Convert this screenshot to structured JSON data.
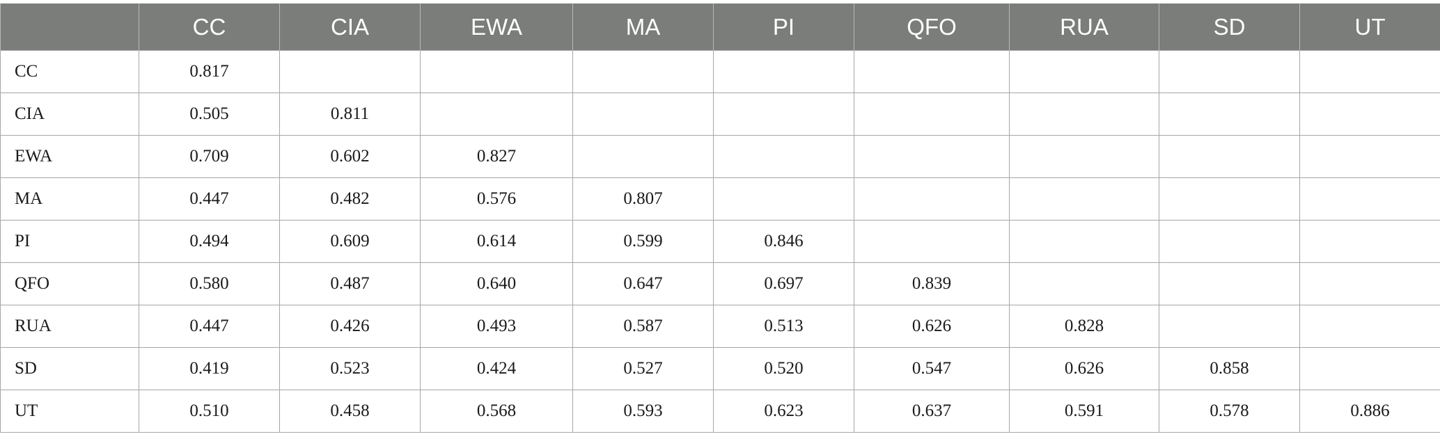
{
  "table": {
    "corner": "",
    "columns": [
      "CC",
      "CIA",
      "EWA",
      "MA",
      "PI",
      "QFO",
      "RUA",
      "SD",
      "UT"
    ],
    "rows": [
      {
        "label": "CC",
        "values": [
          "0.817",
          "",
          "",
          "",
          "",
          "",
          "",
          "",
          ""
        ]
      },
      {
        "label": "CIA",
        "values": [
          "0.505",
          "0.811",
          "",
          "",
          "",
          "",
          "",
          "",
          ""
        ]
      },
      {
        "label": "EWA",
        "values": [
          "0.709",
          "0.602",
          "0.827",
          "",
          "",
          "",
          "",
          "",
          ""
        ]
      },
      {
        "label": "MA",
        "values": [
          "0.447",
          "0.482",
          "0.576",
          "0.807",
          "",
          "",
          "",
          "",
          ""
        ]
      },
      {
        "label": "PI",
        "values": [
          "0.494",
          "0.609",
          "0.614",
          "0.599",
          "0.846",
          "",
          "",
          "",
          ""
        ]
      },
      {
        "label": "QFO",
        "values": [
          "0.580",
          "0.487",
          "0.640",
          "0.647",
          "0.697",
          "0.839",
          "",
          "",
          ""
        ]
      },
      {
        "label": "RUA",
        "values": [
          "0.447",
          "0.426",
          "0.493",
          "0.587",
          "0.513",
          "0.626",
          "0.828",
          "",
          ""
        ]
      },
      {
        "label": "SD",
        "values": [
          "0.419",
          "0.523",
          "0.424",
          "0.527",
          "0.520",
          "0.547",
          "0.626",
          "0.858",
          ""
        ]
      },
      {
        "label": "UT",
        "values": [
          "0.510",
          "0.458",
          "0.568",
          "0.593",
          "0.623",
          "0.637",
          "0.591",
          "0.578",
          "0.886"
        ]
      }
    ]
  },
  "colors": {
    "header_background": "#7b7d7b",
    "header_text": "#ffffff",
    "grid_lines": "#a6a6a6"
  }
}
